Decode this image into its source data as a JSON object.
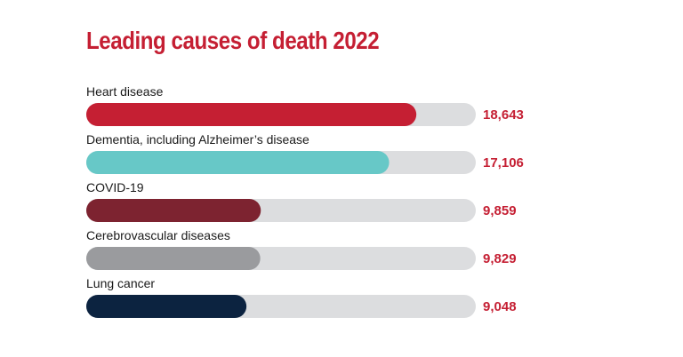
{
  "chart_data": {
    "type": "bar",
    "orientation": "horizontal",
    "title": "Leading causes of death 2022",
    "xlabel": "",
    "ylabel": "",
    "xlim": [
      0,
      22000
    ],
    "grid": false,
    "legend": "none",
    "title_color": "#c51f33",
    "value_label_color": "#c51f33",
    "track_color": "#dcdddf",
    "categories": [
      "Heart disease",
      "Dementia, including Alzheimer’s disease",
      "COVID-19",
      "Cerebrovascular diseases",
      "Lung cancer"
    ],
    "values": [
      18643,
      17106,
      9859,
      9829,
      9048
    ],
    "value_labels": [
      "18,643",
      "17,106",
      "9,859",
      "9,829",
      "9,048"
    ],
    "bar_colors": [
      "#c51f33",
      "#67c8c7",
      "#7d2330",
      "#9a9b9e",
      "#0c2340"
    ]
  }
}
